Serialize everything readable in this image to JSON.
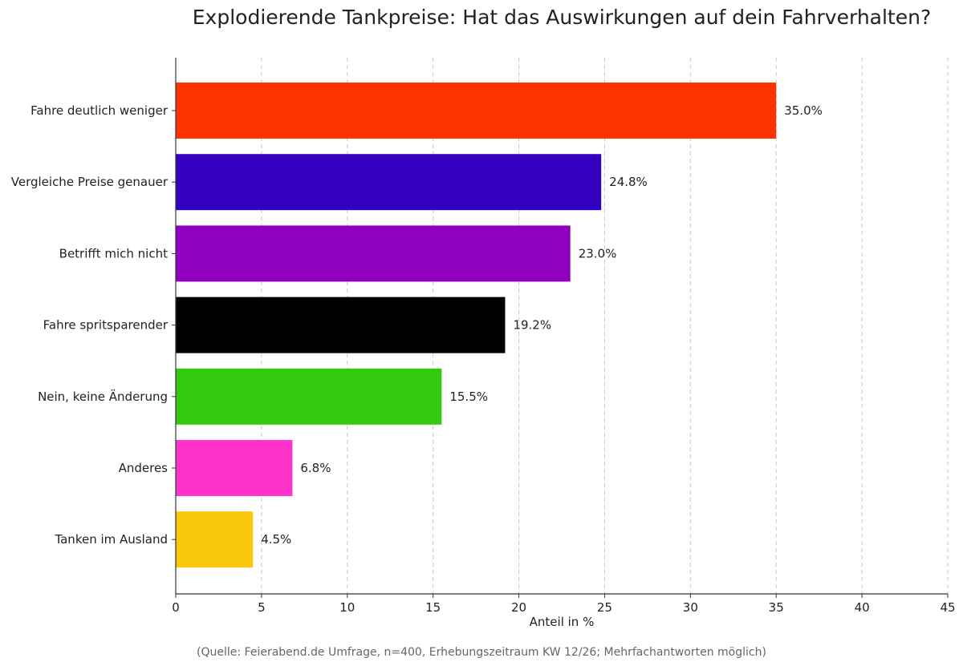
{
  "chart_data": {
    "type": "bar",
    "orientation": "horizontal",
    "title": "Explodierende Tankpreise: Hat das Auswirkungen auf dein Fahrverhalten?",
    "xlabel": "Anteil in %",
    "ylabel": "",
    "xlim": [
      0,
      45
    ],
    "xticks": [
      0,
      5,
      10,
      15,
      20,
      25,
      30,
      35,
      40,
      45
    ],
    "grid": "vertical dashed",
    "categories": [
      "Fahre deutlich weniger",
      "Vergleiche Preise genauer",
      "Betrifft mich nicht",
      "Fahre spritsparender",
      "Nein, keine Änderung",
      "Anderes",
      "Tanken im Ausland"
    ],
    "values": [
      35.0,
      24.8,
      23.0,
      19.2,
      15.5,
      6.8,
      4.5
    ],
    "data_labels": [
      "35.0%",
      "24.8%",
      "23.0%",
      "19.2%",
      "15.5%",
      "6.8%",
      "4.5%"
    ],
    "colors": [
      "#ff3300",
      "#3300c0",
      "#9000c0",
      "#000000",
      "#33c90f",
      "#ff33cc",
      "#f9c80a"
    ],
    "footnote": "(Quelle: Feierabend.de Umfrage, n=400, Erhebungszeitraum KW 12/26; Mehrfachantworten möglich)"
  }
}
